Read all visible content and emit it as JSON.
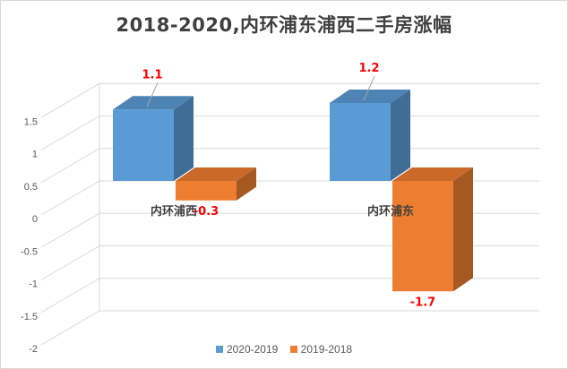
{
  "chart_data": {
    "type": "bar",
    "title": "2018-2020,内环浦东浦西二手房涨幅",
    "categories": [
      "内环浦西",
      "内环浦东"
    ],
    "series": [
      {
        "name": "2020-2019",
        "values": [
          1.1,
          1.2
        ],
        "color": "#5B9BD5"
      },
      {
        "name": "2019-2018",
        "values": [
          -0.3,
          -1.7
        ],
        "color": "#ED7D31"
      }
    ],
    "data_labels": [
      [
        "1.1",
        "1.2"
      ],
      [
        "-0.3",
        "-1.7"
      ]
    ],
    "data_label_color": "#FF0000",
    "yticks": [
      "1.5",
      "1",
      "0.5",
      "0",
      "-0.5",
      "-1",
      "-1.5",
      "-2"
    ],
    "ylim": [
      -2,
      1.5
    ],
    "grid": true,
    "legend_position": "bottom",
    "style": "3d-column"
  }
}
